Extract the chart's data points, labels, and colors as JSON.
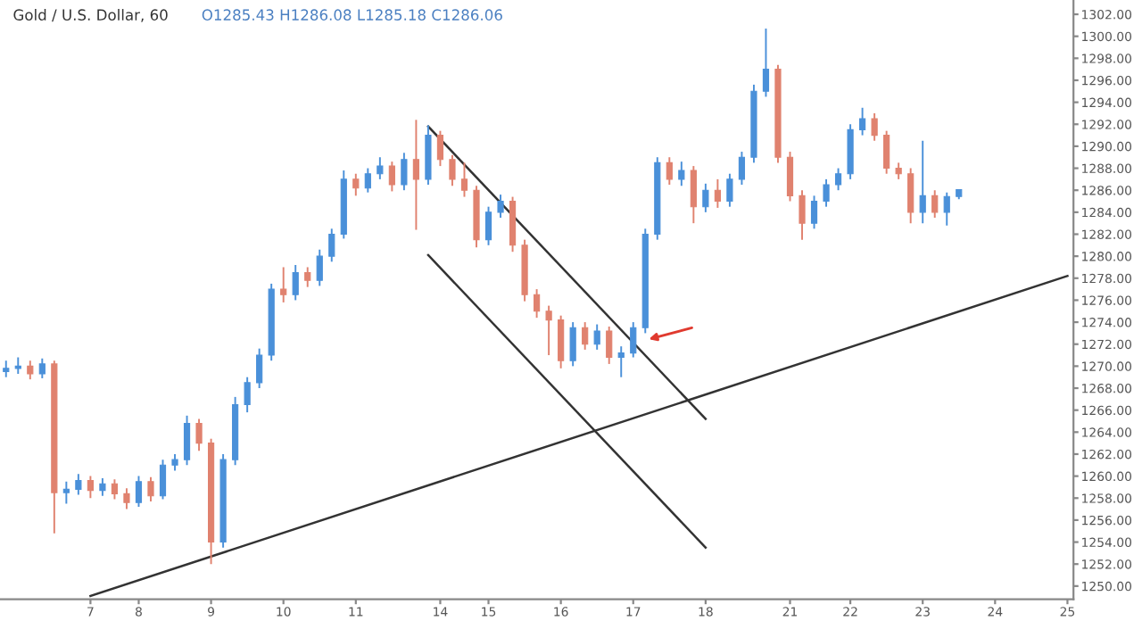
{
  "chart_data": {
    "type": "candlestick",
    "title": "Gold / U.S. Dollar, 60",
    "annotations": [
      "O1285.43 H1286.08 L1285.18 C1286.06"
    ],
    "categories": [
      null,
      null,
      null,
      null,
      null,
      null,
      null,
      "7",
      null,
      null,
      null,
      "8",
      null,
      null,
      null,
      null,
      null,
      "9",
      null,
      null,
      null,
      null,
      null,
      "10",
      null,
      null,
      null,
      null,
      null,
      "11",
      null,
      null,
      null,
      null,
      null,
      null,
      "14",
      null,
      null,
      null,
      "15",
      null,
      null,
      null,
      null,
      null,
      "16",
      null,
      null,
      null,
      null,
      null,
      "17",
      null,
      null,
      null,
      null,
      null,
      "18",
      null,
      null,
      null,
      null,
      null,
      null,
      "21",
      null,
      null,
      null,
      null,
      "22",
      null,
      null,
      null,
      null,
      null,
      "23",
      null,
      null,
      null,
      null,
      null,
      "24",
      null,
      null,
      null,
      null,
      null,
      "25"
    ],
    "ohlc": [
      [
        1269.5,
        1270.5,
        1269.0,
        1269.8
      ],
      [
        1269.8,
        1270.8,
        1269.3,
        1270.0
      ],
      [
        1270.0,
        1270.5,
        1268.8,
        1269.3
      ],
      [
        1269.3,
        1270.7,
        1268.9,
        1270.2
      ],
      [
        1270.2,
        1270.5,
        1254.8,
        1258.5
      ],
      [
        1258.5,
        1259.5,
        1257.5,
        1258.8
      ],
      [
        1258.8,
        1260.2,
        1258.3,
        1259.6
      ],
      [
        1259.6,
        1260.0,
        1258.0,
        1258.7
      ],
      [
        1258.7,
        1259.8,
        1258.2,
        1259.3
      ],
      [
        1259.3,
        1259.7,
        1257.9,
        1258.4
      ],
      [
        1258.4,
        1258.9,
        1257.0,
        1257.6
      ],
      [
        1257.6,
        1260.0,
        1257.2,
        1259.5
      ],
      [
        1259.5,
        1259.9,
        1257.7,
        1258.2
      ],
      [
        1258.2,
        1261.5,
        1257.9,
        1261.0
      ],
      [
        1261.0,
        1262.0,
        1260.5,
        1261.5
      ],
      [
        1261.5,
        1265.5,
        1261.0,
        1264.8
      ],
      [
        1264.8,
        1265.2,
        1262.3,
        1263.0
      ],
      [
        1263.0,
        1263.4,
        1252.0,
        1254.0
      ],
      [
        1254.0,
        1262.0,
        1253.5,
        1261.5
      ],
      [
        1261.5,
        1267.2,
        1261.0,
        1266.5
      ],
      [
        1266.5,
        1269.0,
        1265.8,
        1268.5
      ],
      [
        1268.5,
        1271.6,
        1268.0,
        1271.0
      ],
      [
        1271.0,
        1277.5,
        1270.5,
        1277.0
      ],
      [
        1277.0,
        1279.0,
        1275.8,
        1276.5
      ],
      [
        1276.5,
        1279.2,
        1276.0,
        1278.5
      ],
      [
        1278.5,
        1279.0,
        1277.2,
        1277.8
      ],
      [
        1277.8,
        1280.6,
        1277.3,
        1280.0
      ],
      [
        1280.0,
        1282.5,
        1279.5,
        1282.0
      ],
      [
        1282.0,
        1287.8,
        1281.6,
        1287.0
      ],
      [
        1287.0,
        1287.5,
        1285.5,
        1286.2
      ],
      [
        1286.2,
        1288.0,
        1285.8,
        1287.5
      ],
      [
        1287.5,
        1289.0,
        1287.0,
        1288.2
      ],
      [
        1288.2,
        1288.6,
        1285.9,
        1286.5
      ],
      [
        1286.5,
        1289.4,
        1286.0,
        1288.8
      ],
      [
        1288.8,
        1292.4,
        1282.4,
        1287.0
      ],
      [
        1287.0,
        1291.9,
        1286.5,
        1291.0
      ],
      [
        1291.0,
        1291.4,
        1288.2,
        1288.8
      ],
      [
        1288.8,
        1289.2,
        1286.4,
        1287.0
      ],
      [
        1287.0,
        1288.5,
        1285.4,
        1286.0
      ],
      [
        1286.0,
        1286.4,
        1280.8,
        1281.5
      ],
      [
        1281.5,
        1284.5,
        1281.0,
        1284.0
      ],
      [
        1284.0,
        1285.6,
        1283.5,
        1285.0
      ],
      [
        1285.0,
        1285.4,
        1280.4,
        1281.0
      ],
      [
        1281.0,
        1281.5,
        1275.9,
        1276.5
      ],
      [
        1276.5,
        1277.0,
        1274.4,
        1275.0
      ],
      [
        1275.0,
        1275.5,
        1271.0,
        1274.2
      ],
      [
        1274.2,
        1274.6,
        1269.8,
        1270.5
      ],
      [
        1270.5,
        1274.0,
        1270.0,
        1273.5
      ],
      [
        1273.5,
        1274.0,
        1271.5,
        1272.0
      ],
      [
        1272.0,
        1273.8,
        1271.5,
        1273.2
      ],
      [
        1273.2,
        1273.6,
        1270.2,
        1270.8
      ],
      [
        1270.8,
        1271.8,
        1269.0,
        1271.2
      ],
      [
        1271.2,
        1274.0,
        1270.8,
        1273.5
      ],
      [
        1273.5,
        1282.5,
        1273.0,
        1282.0
      ],
      [
        1282.0,
        1289.0,
        1281.5,
        1288.5
      ],
      [
        1288.5,
        1289.0,
        1286.5,
        1287.0
      ],
      [
        1287.0,
        1288.6,
        1286.4,
        1287.8
      ],
      [
        1287.8,
        1288.2,
        1283.0,
        1284.5
      ],
      [
        1284.5,
        1286.6,
        1284.0,
        1286.0
      ],
      [
        1286.0,
        1287.0,
        1284.4,
        1285.0
      ],
      [
        1285.0,
        1287.5,
        1284.5,
        1287.0
      ],
      [
        1287.0,
        1289.5,
        1286.5,
        1289.0
      ],
      [
        1289.0,
        1295.6,
        1288.5,
        1295.0
      ],
      [
        1295.0,
        1300.7,
        1294.5,
        1297.0
      ],
      [
        1297.0,
        1297.4,
        1288.5,
        1289.0
      ],
      [
        1289.0,
        1289.5,
        1285.0,
        1285.5
      ],
      [
        1285.5,
        1286.0,
        1281.5,
        1283.0
      ],
      [
        1283.0,
        1285.5,
        1282.5,
        1285.0
      ],
      [
        1285.0,
        1287.0,
        1284.5,
        1286.5
      ],
      [
        1286.5,
        1288.0,
        1286.0,
        1287.5
      ],
      [
        1287.5,
        1292.0,
        1287.0,
        1291.5
      ],
      [
        1291.5,
        1293.5,
        1291.0,
        1292.5
      ],
      [
        1292.5,
        1293.0,
        1290.5,
        1291.0
      ],
      [
        1291.0,
        1291.4,
        1287.5,
        1288.0
      ],
      [
        1288.0,
        1288.5,
        1287.0,
        1287.5
      ],
      [
        1287.5,
        1288.0,
        1283.0,
        1284.0
      ],
      [
        1284.0,
        1290.5,
        1283.0,
        1285.5
      ],
      [
        1285.5,
        1286.0,
        1283.5,
        1284.0
      ],
      [
        1284.0,
        1285.8,
        1282.8,
        1285.43
      ],
      [
        1285.43,
        1286.08,
        1285.18,
        1286.06
      ],
      null,
      null,
      null,
      null,
      null,
      null,
      null,
      null,
      null
    ],
    "colors": [
      "#4a90d9",
      "#4a90d9",
      "#e0826f",
      "#4a90d9",
      "#e0826f",
      "#4a90d9",
      "#4a90d9",
      "#e0826f",
      "#4a90d9",
      "#e0826f",
      "#e0826f",
      "#4a90d9",
      "#e0826f",
      "#4a90d9",
      "#4a90d9",
      "#4a90d9",
      "#e0826f",
      "#e0826f",
      "#4a90d9",
      "#4a90d9",
      "#4a90d9",
      "#4a90d9",
      "#4a90d9",
      "#e0826f",
      "#4a90d9",
      "#e0826f",
      "#4a90d9",
      "#4a90d9",
      "#4a90d9",
      "#e0826f",
      "#4a90d9",
      "#4a90d9",
      "#e0826f",
      "#4a90d9",
      "#e0826f",
      "#4a90d9",
      "#e0826f",
      "#e0826f",
      "#e0826f",
      "#e0826f",
      "#4a90d9",
      "#4a90d9",
      "#e0826f",
      "#e0826f",
      "#e0826f",
      "#e0826f",
      "#e0826f",
      "#4a90d9",
      "#e0826f",
      "#4a90d9",
      "#e0826f",
      "#4a90d9",
      "#4a90d9",
      "#4a90d9",
      "#4a90d9",
      "#e0826f",
      "#4a90d9",
      "#e0826f",
      "#4a90d9",
      "#e0826f",
      "#4a90d9",
      "#4a90d9",
      "#4a90d9",
      "#4a90d9",
      "#e0826f",
      "#e0826f",
      "#e0826f",
      "#4a90d9",
      "#4a90d9",
      "#4a90d9",
      "#4a90d9",
      "#4a90d9",
      "#e0826f",
      "#e0826f",
      "#e0826f",
      "#e0826f",
      "#4a90d9",
      "#e0826f",
      "#4a90d9",
      "#4a90d9",
      null,
      null,
      null,
      null,
      null,
      null,
      null,
      null,
      null
    ],
    "series": [
      {
        "type": "line",
        "values": [
          null,
          null,
          null,
          null,
          null,
          null,
          null,
          1249.1,
          null,
          null,
          null,
          null,
          null,
          null,
          null,
          null,
          null,
          null,
          null,
          null,
          null,
          null,
          null,
          null,
          null,
          null,
          null,
          null,
          null,
          null,
          null,
          null,
          null,
          null,
          null,
          null,
          null,
          null,
          null,
          null,
          null,
          null,
          null,
          null,
          null,
          null,
          null,
          null,
          null,
          null,
          null,
          null,
          null,
          null,
          null,
          null,
          null,
          null,
          null,
          null,
          null,
          null,
          null,
          null,
          null,
          null,
          null,
          null,
          null,
          null,
          null,
          null,
          null,
          null,
          null,
          null,
          null,
          null,
          null,
          null,
          null,
          null,
          null,
          null,
          null,
          null,
          null,
          null,
          1278.2
        ],
        "color": "#333333"
      },
      {
        "type": "line",
        "values": [
          null,
          null,
          null,
          null,
          null,
          null,
          null,
          null,
          null,
          null,
          null,
          null,
          null,
          null,
          null,
          null,
          null,
          null,
          null,
          null,
          null,
          null,
          null,
          null,
          null,
          null,
          null,
          null,
          null,
          null,
          null,
          null,
          null,
          null,
          null,
          1291.8,
          null,
          null,
          null,
          null,
          null,
          null,
          null,
          null,
          null,
          null,
          null,
          null,
          null,
          null,
          null,
          null,
          null,
          null,
          null,
          null,
          null,
          null,
          1265.2,
          null,
          null,
          null,
          null,
          null,
          null,
          null,
          null,
          null,
          null,
          null,
          null,
          null,
          null,
          null,
          null,
          null,
          null,
          null,
          null,
          null,
          null,
          null,
          null,
          null,
          null,
          null,
          null,
          null,
          null
        ],
        "color": "#333333"
      },
      {
        "type": "line",
        "values": [
          null,
          null,
          null,
          null,
          null,
          null,
          null,
          null,
          null,
          null,
          null,
          null,
          null,
          null,
          null,
          null,
          null,
          null,
          null,
          null,
          null,
          null,
          null,
          null,
          null,
          null,
          null,
          null,
          null,
          null,
          null,
          null,
          null,
          null,
          null,
          1280.1,
          null,
          null,
          null,
          null,
          null,
          null,
          null,
          null,
          null,
          null,
          null,
          null,
          null,
          null,
          null,
          null,
          null,
          null,
          null,
          null,
          null,
          null,
          1253.5,
          null,
          null,
          null,
          null,
          null,
          null,
          null,
          null,
          null,
          null,
          null,
          null,
          null,
          null,
          null,
          null,
          null,
          null,
          null,
          null,
          null,
          null,
          null,
          null,
          null,
          null,
          null,
          null,
          null,
          null
        ],
        "color": "#333333"
      }
    ],
    "ylim": [
      1248.8,
      1303.3
    ],
    "yticks": [
      {
        "value": 1250,
        "label": "1250.00"
      },
      {
        "value": 1252,
        "label": "1252.00"
      },
      {
        "value": 1254,
        "label": "1254.00"
      },
      {
        "value": 1256,
        "label": "1256.00"
      },
      {
        "value": 1258,
        "label": "1258.00"
      },
      {
        "value": 1260,
        "label": "1260.00"
      },
      {
        "value": 1262,
        "label": "1262.00"
      },
      {
        "value": 1264,
        "label": "1264.00"
      },
      {
        "value": 1266,
        "label": "1266.00"
      },
      {
        "value": 1268,
        "label": "1268.00"
      },
      {
        "value": 1270,
        "label": "1270.00"
      },
      {
        "value": 1272,
        "label": "1272.00"
      },
      {
        "value": 1274,
        "label": "1274.00"
      },
      {
        "value": 1276,
        "label": "1276.00"
      },
      {
        "value": 1278,
        "label": "1278.00"
      },
      {
        "value": 1280,
        "label": "1280.00"
      },
      {
        "value": 1282,
        "label": "1282.00"
      },
      {
        "value": 1284,
        "label": "1284.00"
      },
      {
        "value": 1286,
        "label": "1286.00"
      },
      {
        "value": 1288,
        "label": "1288.00"
      },
      {
        "value": 1290,
        "label": "1290.00"
      },
      {
        "value": 1292,
        "label": "1292.00"
      },
      {
        "value": 1294,
        "label": "1294.00"
      },
      {
        "value": 1296,
        "label": "1296.00"
      },
      {
        "value": 1298,
        "label": "1298.00"
      },
      {
        "value": 1300,
        "label": "1300.00"
      },
      {
        "value": 1302,
        "label": "1302.00"
      }
    ],
    "grid": false,
    "legend": false
  }
}
